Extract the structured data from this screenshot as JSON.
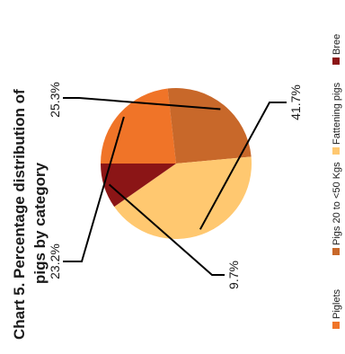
{
  "chart_data": {
    "type": "pie",
    "orientation": "rotated-90-ccw",
    "title_line1": "Chart 5.  Percentage distribution of",
    "title_line2": "pigs by category",
    "slices": [
      {
        "name": "Piglets",
        "value": 23.2,
        "label": "23.2%",
        "color": "#F07428"
      },
      {
        "name": "Pigs 20 to <50 Kgs",
        "value": 25.3,
        "label": "25.3%",
        "color": "#C8682A"
      },
      {
        "name": "Fattening pigs",
        "value": 41.7,
        "label": "41.7%",
        "color": "#FFC870"
      },
      {
        "name": "Breeding pigs",
        "value": 9.7,
        "label": "9.7%",
        "color": "#8B1516"
      }
    ],
    "legend": {
      "placement": "right",
      "items": [
        "Piglets",
        "Pigs 20 to <50 Kgs",
        "Fattening pigs",
        "Bree"
      ]
    }
  }
}
